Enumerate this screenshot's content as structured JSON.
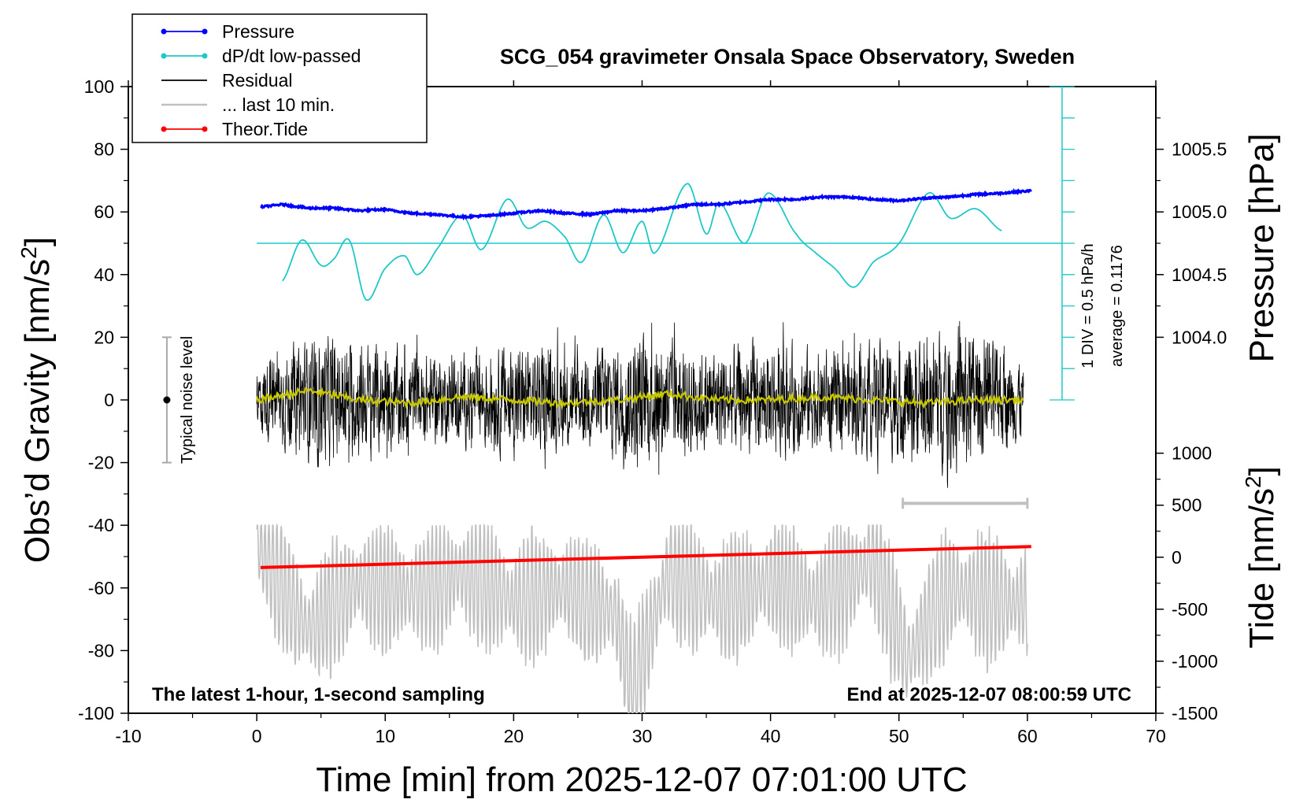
{
  "chart_data": {
    "type": "line",
    "title": "SCG_054 gravimeter Onsala Space Observatory, Sweden",
    "xlabel": "Time [min] from 2025-12-07 07:01:00 UTC",
    "ylabel_left": "Obs’d Gravity [nm/s",
    "ylabel_left_sup": "2",
    "ylabel_left_end": "]",
    "ylabel_right_pressure": "Pressure [hPa]",
    "ylabel_right_tide": "Tide [nm/s",
    "ylabel_right_tide_sup": "2",
    "ylabel_right_tide_end": "]",
    "xlim": [
      -10,
      70
    ],
    "ylim": [
      -100,
      100
    ],
    "x_ticks": [
      "-10",
      "0",
      "10",
      "20",
      "30",
      "40",
      "50",
      "60",
      "70"
    ],
    "y_ticks": [
      "100",
      "80",
      "60",
      "40",
      "20",
      "0",
      "-20",
      "-40",
      "-60",
      "-80",
      "-100"
    ],
    "pressure_ticks": [
      "1005.5",
      "1005.0",
      "1004.5",
      "1004.0"
    ],
    "pressure_tick_values": [
      1005.5,
      1005.0,
      1004.5,
      1004.0
    ],
    "pressure_axis_map": {
      "gravity": [
        60,
        20
      ],
      "hPa": [
        1005.0,
        1004.0
      ]
    },
    "tide_ticks": [
      "1000",
      "500",
      "0",
      "-500",
      "-1000",
      "-1500"
    ],
    "tide_tick_values": [
      1000,
      500,
      0,
      -500,
      -1000,
      -1500
    ],
    "tide_ylim": [
      -1500,
      1000
    ],
    "tide_axis_gravity": [
      -100,
      -17
    ],
    "legend_position": "top-left",
    "legend": [
      {
        "label": "Pressure",
        "color": "#0000ff",
        "marker": true
      },
      {
        "label": "dP/dt low-passed",
        "color": "#1ec8c8",
        "marker": true
      },
      {
        "label": "Residual",
        "color": "#000000",
        "marker": false
      },
      {
        "label": "... last 10 min.",
        "color": "#c0c0c0",
        "marker": false
      },
      {
        "label": "Theor.Tide",
        "color": "#ff0000",
        "marker": true
      }
    ],
    "colors": {
      "pressure": "#0000ff",
      "dpdt": "#1ec8c8",
      "residual": "#000000",
      "last10": "#c0c0c0",
      "tide": "#ff0000",
      "smoothed": "#c8c800",
      "noise_bar": "#aaaaaa"
    },
    "series": {
      "pressure_hPa": {
        "x": [
          0.3,
          2,
          4,
          6,
          8,
          10,
          12,
          14,
          16,
          18,
          20,
          22,
          24,
          26,
          28,
          30,
          32,
          34,
          36,
          38,
          40,
          42,
          44,
          46,
          48,
          50,
          52,
          54,
          56,
          58,
          60.3
        ],
        "values": [
          1005.04,
          1005.06,
          1005.03,
          1005.03,
          1005.01,
          1005.02,
          1004.99,
          1004.98,
          1004.96,
          1004.97,
          1004.99,
          1005.01,
          1004.99,
          1004.98,
          1005.01,
          1005.01,
          1005.03,
          1005.06,
          1005.06,
          1005.08,
          1005.1,
          1005.1,
          1005.12,
          1005.12,
          1005.1,
          1005.09,
          1005.11,
          1005.12,
          1005.14,
          1005.15,
          1005.17
        ]
      },
      "dpdt_lowpassed": {
        "x": [
          2,
          3.5,
          5,
          6,
          7.2,
          8.5,
          10,
          11.5,
          12.5,
          14,
          16,
          17.5,
          19.5,
          21,
          22.5,
          24,
          25.3,
          27,
          28.5,
          30,
          31,
          33.5,
          35,
          36,
          38,
          39.8,
          42,
          43.5,
          45,
          46.5,
          48,
          50,
          52.3,
          54,
          56,
          58
        ],
        "values": [
          38,
          51,
          43,
          45,
          51,
          32,
          42,
          46,
          40,
          48,
          59,
          48,
          64,
          55,
          57,
          52,
          44,
          59,
          47,
          57,
          47,
          69,
          53,
          63,
          50,
          66,
          53,
          47,
          42,
          36,
          44,
          50,
          66,
          58,
          61,
          54
        ]
      },
      "residual_envelope": {
        "x": [
          0,
          5,
          10,
          15,
          20,
          25,
          30,
          35,
          40,
          45,
          50,
          55,
          60
        ],
        "values": [
          20,
          35,
          28,
          22,
          30,
          25,
          35,
          28,
          30,
          25,
          32,
          38,
          20
        ]
      },
      "smoothed_residual": {
        "x": [
          0,
          4,
          8,
          12,
          16,
          20,
          24,
          28,
          32,
          36,
          40,
          44,
          48,
          52,
          56,
          60
        ],
        "values": [
          0,
          3,
          0,
          -1,
          1,
          0,
          -1,
          0,
          2,
          0,
          0,
          1,
          0,
          -1,
          0,
          0
        ]
      },
      "last10_min": {
        "x": [
          0,
          4,
          8,
          12,
          16,
          20,
          24,
          28,
          29.2,
          32,
          36,
          40,
          44,
          48,
          50.7,
          54,
          58,
          60
        ],
        "values": [
          -45,
          -75,
          -58,
          -62,
          -55,
          -65,
          -60,
          -70,
          -98,
          -55,
          -65,
          -58,
          -65,
          -50,
          -85,
          -60,
          -65,
          -65
        ]
      },
      "theor_tide": {
        "x": [
          0.3,
          60.3
        ],
        "values": [
          -53.5,
          -46.8
        ]
      }
    },
    "annotations": {
      "noise_label": "Typical noise level",
      "noise_range": [
        -20,
        20
      ],
      "noise_x": -7,
      "scale_label": "1 DIV = 0.5 hPa/h",
      "average_label": "average = 0.1176",
      "dpdt_axis_x": 62.7,
      "dpdt_zero_level": 50,
      "dpdt_axis_range": [
        0,
        100
      ],
      "last10_bar": {
        "x": [
          50.3,
          60
        ],
        "y": -33
      },
      "bottom_left_text": "The latest 1-hour, 1-second sampling",
      "bottom_right_text": "End at 2025-12-07 08:00:59 UTC"
    }
  }
}
